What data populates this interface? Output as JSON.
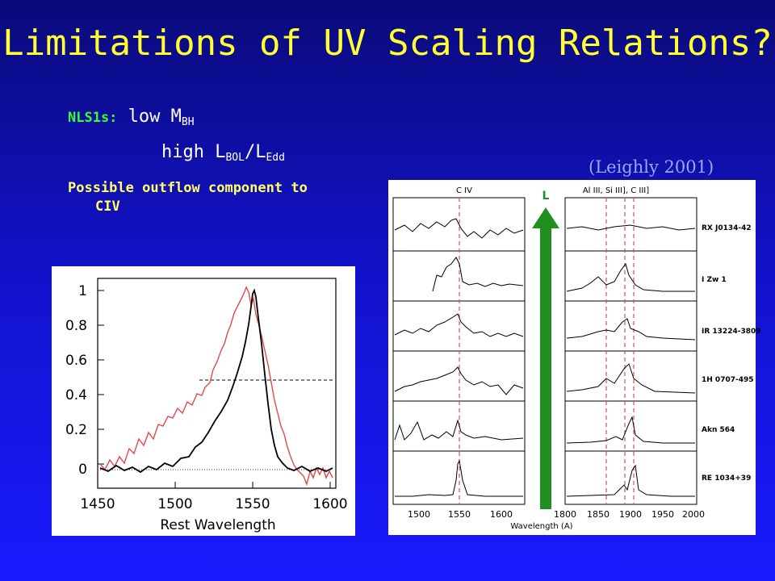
{
  "slide": {
    "title": "Limitations of UV Scaling Relations?",
    "nls1_label": "NLS1s:",
    "nls1_low": "low M",
    "nls1_low_sub": "BH",
    "nls1_high_a": "high L",
    "nls1_high_sub1": "BOL",
    "nls1_high_b": "/L",
    "nls1_high_sub2": "Edd",
    "outflow_line1": "Possible outflow component to",
    "outflow_line2": "CIV",
    "citation": "(Leighly 2001)"
  },
  "left_plot": {
    "xlabel": "Rest Wavelength",
    "x_ticks": [
      "1450",
      "1500",
      "1550",
      "1600"
    ],
    "y_ticks": [
      "1",
      "0.8",
      "0.6",
      "0.4",
      "0.2",
      "0"
    ]
  },
  "right_plot": {
    "header_left": "C IV",
    "header_right": "Al III, Si III], C III]",
    "arrow_label": "L",
    "xlabel": "Wavelength (A)",
    "x_ticks_left": [
      "1500",
      "1550",
      "1600"
    ],
    "x_ticks_right": [
      "1800",
      "1850",
      "1900",
      "1950",
      "2000"
    ],
    "objects": [
      "RX J0134-42",
      "I Zw 1",
      "IR 13224-3809",
      "1H 0707-495",
      "Akn 564",
      "RE 1034+39"
    ]
  },
  "colors": {
    "title": "#ffff33",
    "nls1_label": "#33ff33",
    "outflow": "#ffff66",
    "citation": "#9aa7ff",
    "red_trace": "#e24a4a",
    "arrow": "#1f8f1f"
  }
}
